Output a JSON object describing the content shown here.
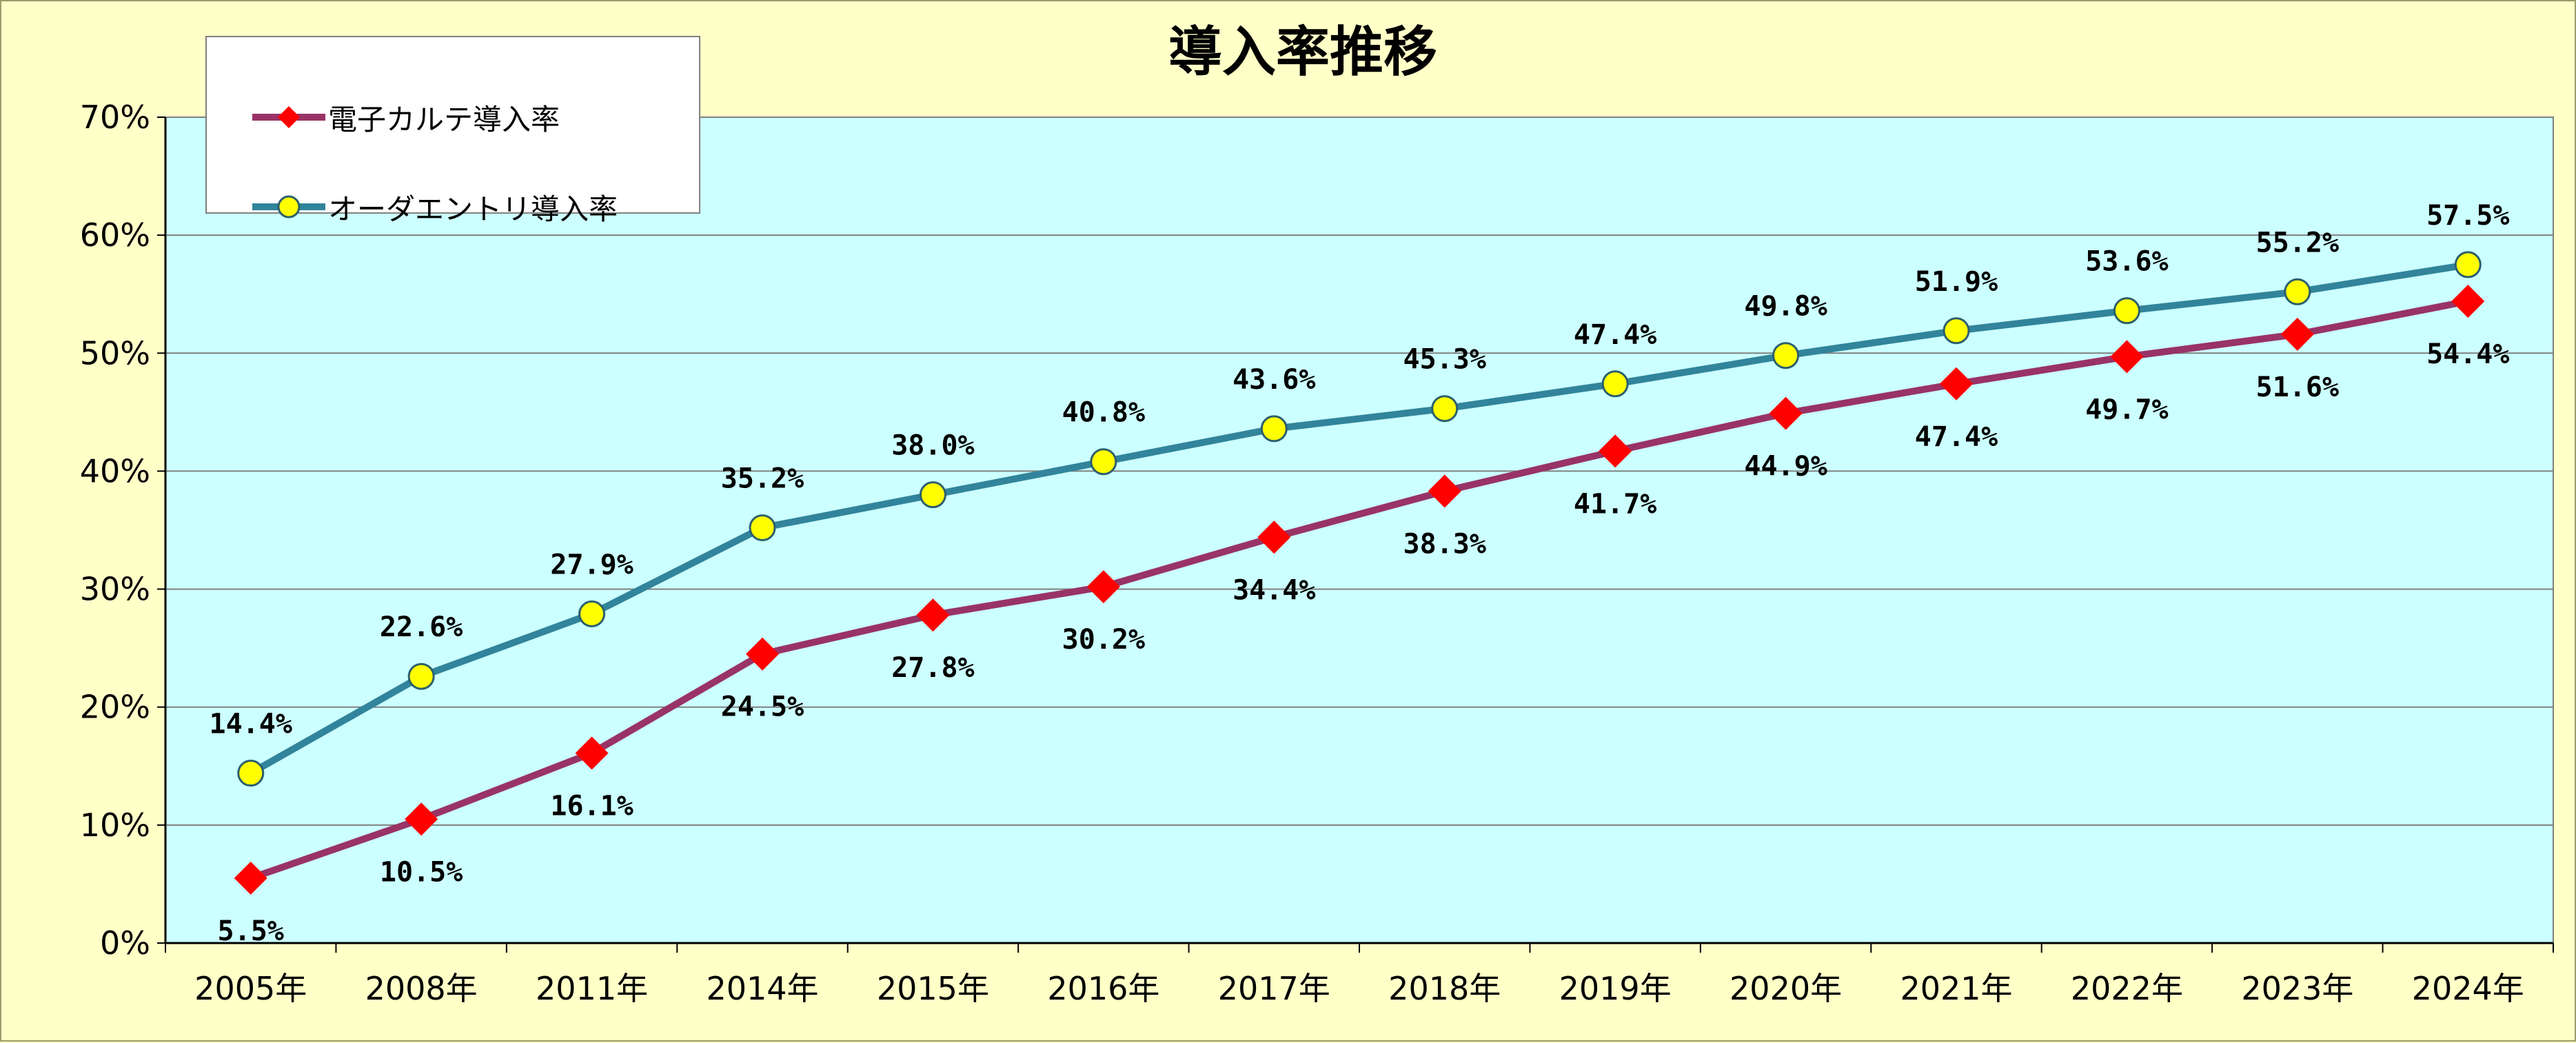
{
  "chart_data": {
    "type": "line",
    "title": "導入率推移",
    "categories": [
      "2005年",
      "2008年",
      "2011年",
      "2014年",
      "2015年",
      "2016年",
      "2017年",
      "2018年",
      "2019年",
      "2020年",
      "2021年",
      "2022年",
      "2023年",
      "2024年"
    ],
    "series": [
      {
        "name": "電子カルテ導入率",
        "color": "#993366",
        "marker": "diamond",
        "marker_color": "#ff0000",
        "values": [
          5.5,
          10.5,
          16.1,
          24.5,
          27.8,
          30.2,
          34.4,
          38.3,
          41.7,
          44.9,
          47.4,
          49.7,
          51.6,
          54.4
        ],
        "labels": [
          "5.5%",
          "10.5%",
          "16.1%",
          "24.5%",
          "27.8%",
          "30.2%",
          "34.4%",
          "38.3%",
          "41.7%",
          "44.9%",
          "47.4%",
          "49.7%",
          "51.6%",
          "54.4%"
        ]
      },
      {
        "name": "オーダエントリ導入率",
        "color": "#31849b",
        "marker": "circle",
        "marker_color": "#ffff00",
        "values": [
          14.4,
          22.6,
          27.9,
          35.2,
          38.0,
          40.8,
          43.6,
          45.3,
          47.4,
          49.8,
          51.9,
          53.6,
          55.2,
          57.5
        ],
        "labels": [
          "14.4%",
          "22.6%",
          "27.9%",
          "35.2%",
          "38.0%",
          "40.8%",
          "43.6%",
          "45.3%",
          "47.4%",
          "49.8%",
          "51.9%",
          "53.6%",
          "55.2%",
          "57.5%"
        ]
      }
    ],
    "ylim": [
      0,
      70
    ],
    "yticks": [
      0,
      10,
      20,
      30,
      40,
      50,
      60,
      70
    ],
    "ytick_labels": [
      "0%",
      "10%",
      "20%",
      "30%",
      "40%",
      "50%",
      "60%",
      "70%"
    ],
    "xlabel": "",
    "ylabel": "",
    "grid": true,
    "legend_position": "top-left",
    "plot_background": "#ccffff",
    "page_background": "#ffffc8"
  }
}
